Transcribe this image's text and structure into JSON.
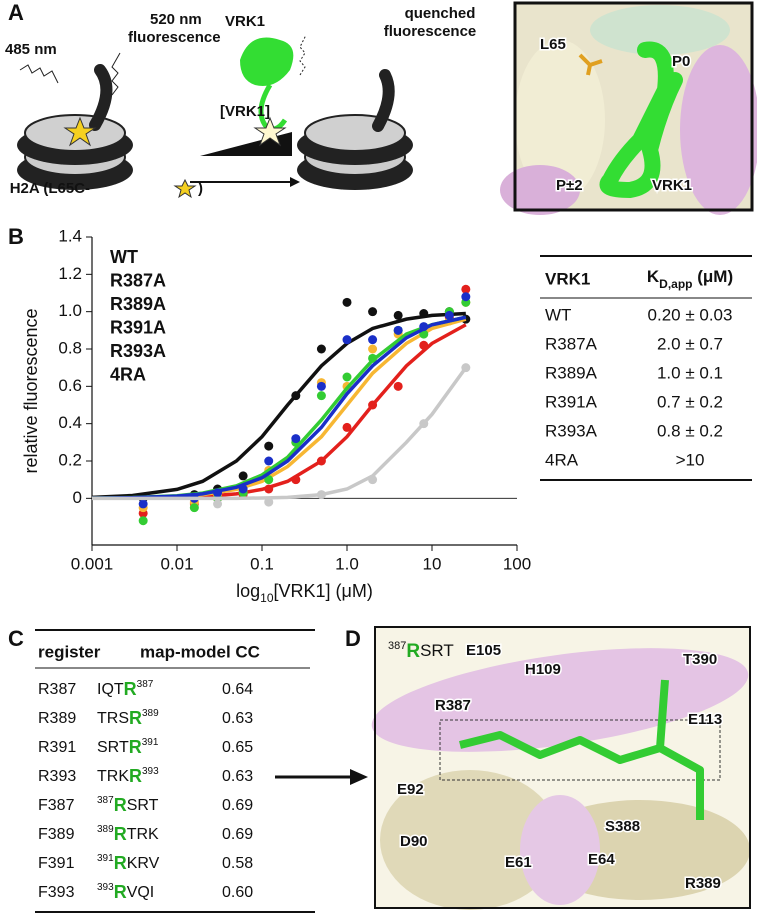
{
  "panel_labels": [
    "A",
    "B",
    "C",
    "D"
  ],
  "panel_a": {
    "excitation": "485 nm",
    "emission": [
      "520 nm",
      "fluorescence"
    ],
    "titrant": "[VRK1]",
    "bound": "VRK1",
    "quenched": [
      "quenched",
      "fluorescence"
    ],
    "construct": "H2A (L65C-",
    "construct_end": ")",
    "structure_labels": [
      {
        "text": "L65",
        "color": "#111111"
      },
      {
        "text": "P0",
        "color": "#22bb22"
      },
      {
        "text": "P±2",
        "color": "#22bb22"
      },
      {
        "text": "VRK1",
        "color": "#22bb22"
      }
    ]
  },
  "chart_data": {
    "type": "scatter",
    "y_label": "relative fluorescence",
    "x_label": {
      "pre": "log",
      "sub": "10",
      "post": "[VRK1] (μM)"
    },
    "log_x": true,
    "xlim": [
      0.001,
      100
    ],
    "ylim": [
      -0.25,
      1.4
    ],
    "xticks": [
      0.001,
      0.01,
      0.1,
      {
        "value": 1,
        "label": "1.0"
      },
      10,
      100
    ],
    "yticks": [
      0,
      0.2,
      0.4,
      0.6,
      0.8,
      {
        "value": 1,
        "label": "1.0"
      },
      1.2,
      1.4
    ],
    "x": [
      0.004,
      0.016,
      0.03,
      0.06,
      0.12,
      0.25,
      0.5,
      1,
      2,
      4,
      8,
      16,
      25
    ],
    "fit_x": [
      0.001,
      0.003,
      0.01,
      0.02,
      0.05,
      0.1,
      0.2,
      0.5,
      1,
      2,
      5,
      10,
      25
    ],
    "series": [
      {
        "name": "WT",
        "color": "#111111",
        "values": [
          0.0,
          0.02,
          0.05,
          0.12,
          0.28,
          0.55,
          0.8,
          1.05,
          1.0,
          0.98,
          0.99,
          1.0,
          0.96
        ],
        "fit": [
          0.005,
          0.015,
          0.048,
          0.091,
          0.2,
          0.33,
          0.5,
          0.71,
          0.83,
          0.91,
          0.96,
          0.98,
          0.99
        ]
      },
      {
        "name": "R387A",
        "color": "#e3201c",
        "values": [
          -0.08,
          -0.03,
          0.0,
          0.02,
          0.05,
          0.1,
          0.2,
          0.38,
          0.5,
          0.6,
          0.82,
          0.97,
          1.12
        ],
        "fit": [
          0.0005,
          0.0015,
          0.005,
          0.01,
          0.024,
          0.048,
          0.091,
          0.2,
          0.33,
          0.5,
          0.71,
          0.83,
          0.93
        ]
      },
      {
        "name": "R389A",
        "color": "#f7b733",
        "values": [
          -0.05,
          -0.02,
          0.02,
          0.04,
          0.15,
          0.3,
          0.62,
          0.6,
          0.8,
          0.88,
          0.9,
          0.95,
          1.05
        ],
        "fit": [
          0.001,
          0.003,
          0.01,
          0.02,
          0.048,
          0.091,
          0.17,
          0.33,
          0.5,
          0.67,
          0.83,
          0.91,
          0.96
        ]
      },
      {
        "name": "R391A",
        "color": "#33cc33",
        "values": [
          -0.12,
          -0.05,
          0.0,
          0.03,
          0.1,
          0.3,
          0.55,
          0.65,
          0.75,
          0.9,
          0.88,
          1.0,
          1.05
        ],
        "fit": [
          0.0014,
          0.0043,
          0.014,
          0.028,
          0.067,
          0.125,
          0.22,
          0.42,
          0.59,
          0.74,
          0.88,
          0.93,
          0.97
        ]
      },
      {
        "name": "R393A",
        "color": "#1a2fc8",
        "values": [
          -0.03,
          0.0,
          0.03,
          0.05,
          0.2,
          0.32,
          0.6,
          0.85,
          0.85,
          0.9,
          0.92,
          0.98,
          1.08
        ],
        "fit": [
          0.0012,
          0.0037,
          0.012,
          0.024,
          0.059,
          0.11,
          0.2,
          0.38,
          0.56,
          0.71,
          0.86,
          0.93,
          0.97
        ]
      },
      {
        "name": "4RA",
        "color": "#c8c8c8",
        "values": [
          null,
          null,
          -0.03,
          null,
          -0.02,
          null,
          0.02,
          null,
          0.1,
          null,
          0.4,
          null,
          0.7
        ],
        "fit": [
          0,
          0,
          0,
          0,
          0,
          0.002,
          0.005,
          0.02,
          0.05,
          0.12,
          0.3,
          0.45,
          0.7
        ]
      }
    ]
  },
  "table_b": {
    "header": [
      {
        "text": "VRK1"
      },
      {
        "text": "K",
        "sub": "D,app",
        "after": " (μM)"
      }
    ],
    "rows": [
      [
        "WT",
        "0.20 ± 0.03"
      ],
      [
        "R387A",
        "2.0 ± 0.7"
      ],
      [
        "R389A",
        "1.0 ± 0.1"
      ],
      [
        "R391A",
        "0.7 ± 0.2"
      ],
      [
        "R393A",
        "0.8 ± 0.2"
      ],
      [
        "4RA",
        ">10"
      ]
    ]
  },
  "table_c": {
    "header": [
      "register",
      "map-model CC"
    ],
    "rows": [
      {
        "register": "R387",
        "sequence": [
          {
            "t": "IQT"
          },
          {
            "t": "R",
            "style": "res"
          },
          {
            "t": "387",
            "style": "sup"
          }
        ],
        "cc": "0.64"
      },
      {
        "register": "R389",
        "sequence": [
          {
            "t": "TRS"
          },
          {
            "t": "R",
            "style": "res"
          },
          {
            "t": "389",
            "style": "sup"
          }
        ],
        "cc": "0.63"
      },
      {
        "register": "R391",
        "sequence": [
          {
            "t": "SRT"
          },
          {
            "t": "R",
            "style": "res"
          },
          {
            "t": "391",
            "style": "sup"
          }
        ],
        "cc": "0.65"
      },
      {
        "register": "R393",
        "sequence": [
          {
            "t": "TRK"
          },
          {
            "t": "R",
            "style": "res"
          },
          {
            "t": "393",
            "style": "sup"
          }
        ],
        "cc": "0.63"
      },
      {
        "register": "F387",
        "sequence": [
          {
            "t": "387",
            "style": "sup"
          },
          {
            "t": "R",
            "style": "res"
          },
          {
            "t": "SRT"
          }
        ],
        "cc": "0.69"
      },
      {
        "register": "F389",
        "sequence": [
          {
            "t": "389",
            "style": "sup"
          },
          {
            "t": "R",
            "style": "res"
          },
          {
            "t": "TRK"
          }
        ],
        "cc": "0.69"
      },
      {
        "register": "F391",
        "sequence": [
          {
            "t": "391",
            "style": "sup"
          },
          {
            "t": "R",
            "style": "res"
          },
          {
            "t": "KRV"
          }
        ],
        "cc": "0.58"
      },
      {
        "register": "F393",
        "sequence": [
          {
            "t": "393",
            "style": "sup"
          },
          {
            "t": "R",
            "style": "res"
          },
          {
            "t": "VQI"
          }
        ],
        "cc": "0.60"
      }
    ]
  },
  "panel_d": {
    "title": [
      {
        "t": "387",
        "style": "sup"
      },
      {
        "t": "R",
        "style": "res"
      },
      {
        "t": "SRT"
      }
    ],
    "labels": [
      {
        "text": "E105",
        "color": "#dca6dc"
      },
      {
        "text": "H109",
        "color": "#dca6dc"
      },
      {
        "text": "T390",
        "color": "#22bb22"
      },
      {
        "text": "R387",
        "color": "#22bb22"
      },
      {
        "text": "E113",
        "color": "#dca6dc"
      },
      {
        "text": "E92",
        "color": "#111111"
      },
      {
        "text": "D90",
        "color": "#111111"
      },
      {
        "text": "E61",
        "color": "#111111"
      },
      {
        "text": "E64",
        "color": "#111111"
      },
      {
        "text": "S388",
        "color": "#22bb22"
      },
      {
        "text": "R389",
        "color": "#22bb22"
      }
    ]
  }
}
